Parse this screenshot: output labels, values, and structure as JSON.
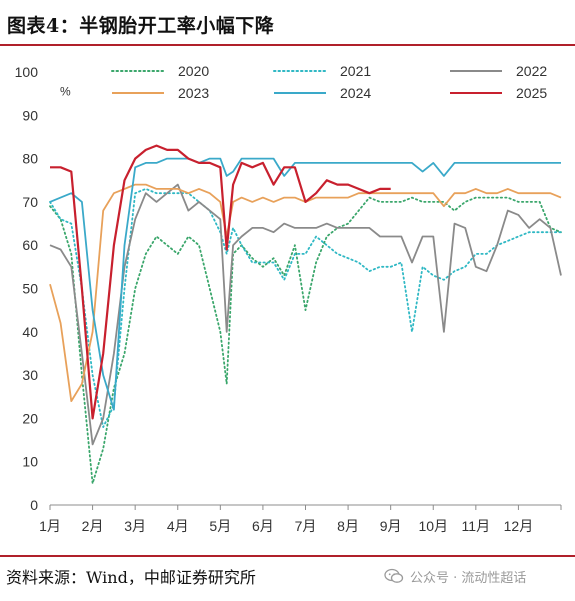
{
  "header": {
    "title": "图表4：半钢胎开工率小幅下降"
  },
  "footer": {
    "source": "资料来源：Wind，中邮证券研究所",
    "watermark": "公众号 · 流动性超话"
  },
  "chart_data": {
    "type": "line",
    "unit_label": "%",
    "ylim": [
      0,
      100
    ],
    "yticks": [
      0,
      10,
      20,
      30,
      40,
      50,
      60,
      70,
      80,
      90,
      100
    ],
    "xlim": [
      1,
      13
    ],
    "xtick_labels": [
      "1月",
      "2月",
      "3月",
      "4月",
      "5月",
      "6月",
      "7月",
      "8月",
      "9月",
      "10月",
      "11月",
      "12月"
    ],
    "grid": false,
    "legend_position": "top",
    "series": [
      {
        "name": "2020",
        "color": "#3aa66b",
        "style": "dotted",
        "points": [
          [
            1.0,
            69
          ],
          [
            1.25,
            66
          ],
          [
            1.5,
            58
          ],
          [
            1.75,
            30
          ],
          [
            2.0,
            5
          ],
          [
            2.25,
            13
          ],
          [
            2.5,
            27
          ],
          [
            2.75,
            35
          ],
          [
            3.0,
            50
          ],
          [
            3.25,
            58
          ],
          [
            3.5,
            62
          ],
          [
            3.75,
            60
          ],
          [
            4.0,
            58
          ],
          [
            4.25,
            62
          ],
          [
            4.5,
            60
          ],
          [
            4.75,
            50
          ],
          [
            5.0,
            40
          ],
          [
            5.15,
            28
          ],
          [
            5.3,
            58
          ],
          [
            5.5,
            60
          ],
          [
            5.75,
            57
          ],
          [
            6.0,
            55
          ],
          [
            6.25,
            57
          ],
          [
            6.5,
            53
          ],
          [
            6.75,
            60
          ],
          [
            7.0,
            45
          ],
          [
            7.25,
            56
          ],
          [
            7.5,
            62
          ],
          [
            7.75,
            64
          ],
          [
            8.0,
            65
          ],
          [
            8.25,
            68
          ],
          [
            8.5,
            71
          ],
          [
            8.75,
            70
          ],
          [
            9.0,
            70
          ],
          [
            9.25,
            70
          ],
          [
            9.5,
            71
          ],
          [
            9.75,
            70
          ],
          [
            10.0,
            70
          ],
          [
            10.25,
            70
          ],
          [
            10.5,
            68
          ],
          [
            10.75,
            70
          ],
          [
            11.0,
            71
          ],
          [
            11.25,
            71
          ],
          [
            11.5,
            71
          ],
          [
            11.75,
            71
          ],
          [
            12.0,
            70
          ],
          [
            12.25,
            70
          ],
          [
            12.5,
            70
          ],
          [
            12.75,
            64
          ],
          [
            13.0,
            63
          ]
        ]
      },
      {
        "name": "2021",
        "color": "#2fb8c4",
        "style": "dotted",
        "points": [
          [
            1.0,
            70
          ],
          [
            1.25,
            66
          ],
          [
            1.5,
            65
          ],
          [
            1.75,
            50
          ],
          [
            2.0,
            30
          ],
          [
            2.25,
            18
          ],
          [
            2.5,
            23
          ],
          [
            2.75,
            50
          ],
          [
            3.0,
            72
          ],
          [
            3.25,
            73
          ],
          [
            3.5,
            72
          ],
          [
            3.75,
            72
          ],
          [
            4.0,
            72
          ],
          [
            4.25,
            72
          ],
          [
            4.5,
            70
          ],
          [
            4.75,
            68
          ],
          [
            5.0,
            63
          ],
          [
            5.15,
            58
          ],
          [
            5.3,
            64
          ],
          [
            5.5,
            60
          ],
          [
            5.75,
            56
          ],
          [
            6.0,
            56
          ],
          [
            6.25,
            56
          ],
          [
            6.5,
            52
          ],
          [
            6.75,
            58
          ],
          [
            7.0,
            58
          ],
          [
            7.25,
            62
          ],
          [
            7.5,
            60
          ],
          [
            7.75,
            58
          ],
          [
            8.0,
            57
          ],
          [
            8.25,
            56
          ],
          [
            8.5,
            54
          ],
          [
            8.75,
            55
          ],
          [
            9.0,
            55
          ],
          [
            9.25,
            56
          ],
          [
            9.5,
            40
          ],
          [
            9.75,
            55
          ],
          [
            10.0,
            53
          ],
          [
            10.25,
            52
          ],
          [
            10.5,
            54
          ],
          [
            10.75,
            55
          ],
          [
            11.0,
            58
          ],
          [
            11.25,
            58
          ],
          [
            11.5,
            60
          ],
          [
            11.75,
            61
          ],
          [
            12.0,
            62
          ],
          [
            12.25,
            63
          ],
          [
            12.5,
            63
          ],
          [
            12.75,
            63
          ],
          [
            13.0,
            63
          ]
        ]
      },
      {
        "name": "2022",
        "color": "#8a8a8a",
        "style": "solid",
        "points": [
          [
            1.0,
            60
          ],
          [
            1.25,
            59
          ],
          [
            1.5,
            55
          ],
          [
            1.75,
            35
          ],
          [
            2.0,
            14
          ],
          [
            2.25,
            20
          ],
          [
            2.5,
            35
          ],
          [
            2.75,
            55
          ],
          [
            3.0,
            66
          ],
          [
            3.25,
            72
          ],
          [
            3.5,
            70
          ],
          [
            3.75,
            72
          ],
          [
            4.0,
            74
          ],
          [
            4.25,
            68
          ],
          [
            4.5,
            70
          ],
          [
            4.75,
            68
          ],
          [
            5.0,
            66
          ],
          [
            5.15,
            40
          ],
          [
            5.3,
            60
          ],
          [
            5.5,
            62
          ],
          [
            5.75,
            64
          ],
          [
            6.0,
            64
          ],
          [
            6.25,
            63
          ],
          [
            6.5,
            65
          ],
          [
            6.75,
            64
          ],
          [
            7.0,
            64
          ],
          [
            7.25,
            64
          ],
          [
            7.5,
            65
          ],
          [
            7.75,
            64
          ],
          [
            8.0,
            64
          ],
          [
            8.25,
            64
          ],
          [
            8.5,
            64
          ],
          [
            8.75,
            62
          ],
          [
            9.0,
            62
          ],
          [
            9.25,
            62
          ],
          [
            9.5,
            56
          ],
          [
            9.75,
            62
          ],
          [
            10.0,
            62
          ],
          [
            10.25,
            40
          ],
          [
            10.5,
            65
          ],
          [
            10.75,
            64
          ],
          [
            11.0,
            55
          ],
          [
            11.25,
            54
          ],
          [
            11.5,
            60
          ],
          [
            11.75,
            68
          ],
          [
            12.0,
            67
          ],
          [
            12.25,
            64
          ],
          [
            12.5,
            66
          ],
          [
            12.75,
            64
          ],
          [
            13.0,
            53
          ]
        ]
      },
      {
        "name": "2023",
        "color": "#e8a15a",
        "style": "solid",
        "points": [
          [
            1.0,
            51
          ],
          [
            1.25,
            42
          ],
          [
            1.5,
            24
          ],
          [
            1.75,
            28
          ],
          [
            2.0,
            40
          ],
          [
            2.25,
            68
          ],
          [
            2.5,
            72
          ],
          [
            2.75,
            73
          ],
          [
            3.0,
            74
          ],
          [
            3.25,
            74
          ],
          [
            3.5,
            73
          ],
          [
            3.75,
            73
          ],
          [
            4.0,
            73
          ],
          [
            4.25,
            72
          ],
          [
            4.5,
            73
          ],
          [
            4.75,
            72
          ],
          [
            5.0,
            70
          ],
          [
            5.15,
            62
          ],
          [
            5.3,
            70
          ],
          [
            5.5,
            71
          ],
          [
            5.75,
            70
          ],
          [
            6.0,
            71
          ],
          [
            6.25,
            70
          ],
          [
            6.5,
            71
          ],
          [
            6.75,
            71
          ],
          [
            7.0,
            70
          ],
          [
            7.25,
            71
          ],
          [
            7.5,
            71
          ],
          [
            7.75,
            71
          ],
          [
            8.0,
            71
          ],
          [
            8.25,
            72
          ],
          [
            8.5,
            72
          ],
          [
            8.75,
            72
          ],
          [
            9.0,
            72
          ],
          [
            9.25,
            72
          ],
          [
            9.5,
            72
          ],
          [
            9.75,
            72
          ],
          [
            10.0,
            72
          ],
          [
            10.25,
            69
          ],
          [
            10.5,
            72
          ],
          [
            10.75,
            72
          ],
          [
            11.0,
            73
          ],
          [
            11.25,
            72
          ],
          [
            11.5,
            72
          ],
          [
            11.75,
            73
          ],
          [
            12.0,
            72
          ],
          [
            12.25,
            72
          ],
          [
            12.5,
            72
          ],
          [
            12.75,
            72
          ],
          [
            13.0,
            71
          ]
        ]
      },
      {
        "name": "2024",
        "color": "#3aa9c9",
        "style": "solid",
        "points": [
          [
            1.0,
            70
          ],
          [
            1.25,
            71
          ],
          [
            1.5,
            72
          ],
          [
            1.75,
            70
          ],
          [
            2.0,
            45
          ],
          [
            2.25,
            30
          ],
          [
            2.5,
            22
          ],
          [
            2.75,
            60
          ],
          [
            3.0,
            78
          ],
          [
            3.25,
            79
          ],
          [
            3.5,
            79
          ],
          [
            3.75,
            80
          ],
          [
            4.0,
            80
          ],
          [
            4.25,
            80
          ],
          [
            4.5,
            79
          ],
          [
            4.75,
            80
          ],
          [
            5.0,
            80
          ],
          [
            5.15,
            76
          ],
          [
            5.3,
            77
          ],
          [
            5.5,
            80
          ],
          [
            5.75,
            80
          ],
          [
            6.0,
            80
          ],
          [
            6.25,
            80
          ],
          [
            6.5,
            76
          ],
          [
            6.75,
            79
          ],
          [
            7.0,
            79
          ],
          [
            7.25,
            79
          ],
          [
            7.5,
            79
          ],
          [
            7.75,
            79
          ],
          [
            8.0,
            79
          ],
          [
            8.25,
            79
          ],
          [
            8.5,
            79
          ],
          [
            8.75,
            79
          ],
          [
            9.0,
            79
          ],
          [
            9.25,
            79
          ],
          [
            9.5,
            79
          ],
          [
            9.75,
            77
          ],
          [
            10.0,
            79
          ],
          [
            10.25,
            76
          ],
          [
            10.5,
            79
          ],
          [
            10.75,
            79
          ],
          [
            11.0,
            79
          ],
          [
            11.25,
            79
          ],
          [
            11.5,
            79
          ],
          [
            11.75,
            79
          ],
          [
            12.0,
            79
          ],
          [
            12.25,
            79
          ],
          [
            12.5,
            79
          ],
          [
            12.75,
            79
          ],
          [
            13.0,
            79
          ]
        ]
      },
      {
        "name": "2025",
        "color": "#c8202e",
        "style": "solid",
        "points": [
          [
            1.0,
            78
          ],
          [
            1.25,
            78
          ],
          [
            1.5,
            77
          ],
          [
            1.75,
            50
          ],
          [
            2.0,
            20
          ],
          [
            2.25,
            35
          ],
          [
            2.5,
            60
          ],
          [
            2.75,
            75
          ],
          [
            3.0,
            80
          ],
          [
            3.25,
            82
          ],
          [
            3.5,
            83
          ],
          [
            3.75,
            82
          ],
          [
            4.0,
            82
          ],
          [
            4.25,
            80
          ],
          [
            4.5,
            79
          ],
          [
            4.75,
            79
          ],
          [
            5.0,
            78
          ],
          [
            5.15,
            59
          ],
          [
            5.3,
            74
          ],
          [
            5.5,
            79
          ],
          [
            5.75,
            78
          ],
          [
            6.0,
            79
          ],
          [
            6.25,
            74
          ],
          [
            6.5,
            78
          ],
          [
            6.75,
            78
          ],
          [
            7.0,
            70
          ],
          [
            7.25,
            72
          ],
          [
            7.5,
            75
          ],
          [
            7.75,
            74
          ],
          [
            8.0,
            74
          ],
          [
            8.25,
            73
          ],
          [
            8.5,
            72
          ],
          [
            8.75,
            73
          ],
          [
            9.0,
            73
          ]
        ]
      }
    ]
  }
}
